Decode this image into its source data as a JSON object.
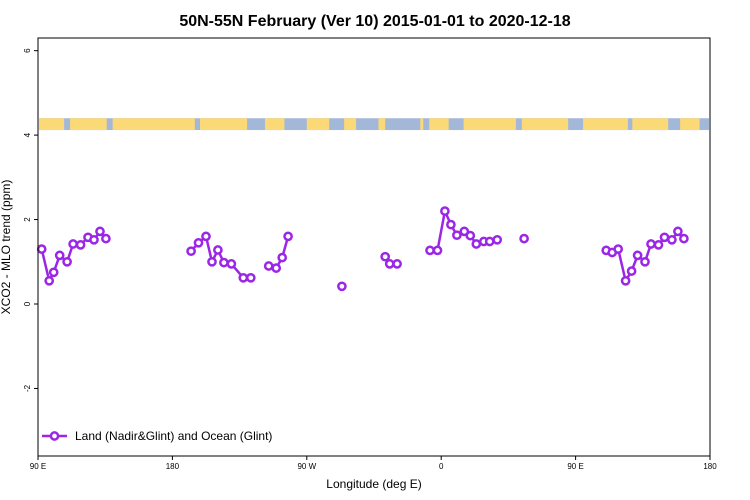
{
  "chart_data": {
    "type": "line",
    "title": "50N-55N February (Ver 10)   2015-01-01 to 2020-12-18",
    "xlabel": "Longitude (deg E)",
    "ylabel": "XCO2 - MLO trend (ppm)",
    "xlim": [
      90,
      450
    ],
    "ylim": [
      -3.6,
      6.3
    ],
    "x_ticks": [
      {
        "value": 90,
        "label": "90 E"
      },
      {
        "value": 180,
        "label": "180"
      },
      {
        "value": 270,
        "label": "90 W"
      },
      {
        "value": 360,
        "label": "0"
      },
      {
        "value": 450,
        "label": "90 E"
      },
      {
        "value": 540,
        "label": "180"
      }
    ],
    "y_ticks": [
      {
        "value": -2,
        "label": "-2"
      },
      {
        "value": 0,
        "label": "0"
      },
      {
        "value": 2,
        "label": "2"
      },
      {
        "value": 4,
        "label": "4"
      },
      {
        "value": 6,
        "label": "6"
      }
    ],
    "series_color": "#9b26e6",
    "land_color": "#fcd977",
    "ocean_color": "#a3b7d9",
    "legend": {
      "label": "Land (Nadir&Glint) and Ocean (Glint)",
      "position": "bottom-left"
    },
    "series": [
      {
        "name": "Land (Nadir&Glint) and Ocean (Glint)",
        "points": [
          [
            92.5,
            1.3
          ],
          [
            97.5,
            0.55
          ],
          [
            100.5,
            0.75
          ],
          [
            104.5,
            1.15
          ],
          [
            109.5,
            1.0
          ],
          [
            113.5,
            1.42
          ],
          [
            118.5,
            1.4
          ],
          [
            123.5,
            1.58
          ],
          [
            127.5,
            1.52
          ],
          [
            131.5,
            1.72
          ],
          [
            135.5,
            1.55
          ],
          null,
          [
            192.5,
            1.25
          ],
          [
            197.5,
            1.45
          ],
          [
            202.5,
            1.6
          ],
          [
            206.5,
            1.0
          ],
          [
            210.5,
            1.28
          ],
          [
            214.5,
            0.98
          ],
          [
            219.5,
            0.95
          ],
          [
            227.5,
            0.62
          ],
          [
            232.5,
            0.62
          ],
          null,
          [
            244.5,
            0.9
          ],
          [
            249.5,
            0.85
          ],
          [
            253.5,
            1.1
          ],
          [
            257.5,
            1.6
          ],
          null,
          [
            293.5,
            0.42
          ],
          null,
          [
            322.5,
            1.12
          ],
          [
            325.5,
            0.95
          ],
          [
            330.5,
            0.95
          ],
          null,
          [
            352.5,
            1.27
          ],
          [
            357.5,
            1.27
          ],
          [
            362.5,
            2.2
          ],
          [
            366.5,
            1.88
          ],
          [
            370.5,
            1.63
          ],
          [
            375.5,
            1.72
          ],
          [
            379.5,
            1.62
          ],
          [
            383.5,
            1.42
          ],
          [
            388.5,
            1.48
          ],
          [
            392.5,
            1.48
          ],
          [
            397.5,
            1.52
          ],
          null,
          [
            415.5,
            1.55
          ],
          null,
          [
            470.5,
            1.27
          ],
          [
            474.5,
            1.22
          ],
          [
            478.5,
            1.3
          ],
          [
            483.5,
            0.55
          ],
          [
            487.5,
            0.78
          ],
          [
            491.5,
            1.15
          ],
          [
            496.5,
            1.0
          ],
          [
            500.5,
            1.42
          ],
          [
            505.5,
            1.4
          ],
          [
            509.5,
            1.58
          ],
          [
            514.5,
            1.52
          ],
          [
            518.5,
            1.72
          ],
          [
            522.5,
            1.55
          ]
        ]
      }
    ],
    "surface_band": {
      "y_range": [
        4.12,
        4.4
      ],
      "land_segments": [
        [
          90,
          107.5
        ],
        [
          111.5,
          136
        ],
        [
          140,
          195
        ],
        [
          198.5,
          230
        ],
        [
          242,
          255
        ],
        [
          270,
          285
        ],
        [
          295,
          303
        ],
        [
          318,
          322.5
        ],
        [
          346,
          348
        ],
        [
          352,
          365
        ],
        [
          375,
          410
        ],
        [
          414,
          445
        ],
        [
          455,
          485
        ],
        [
          488,
          512
        ],
        [
          520,
          533
        ]
      ]
    }
  }
}
